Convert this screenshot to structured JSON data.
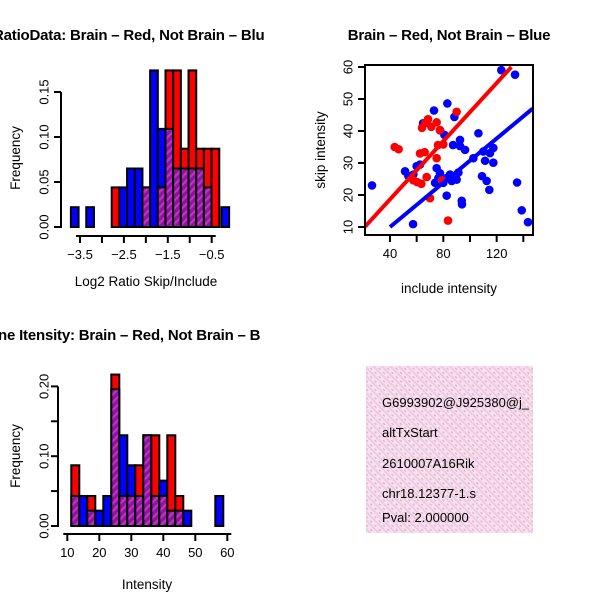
{
  "colors": {
    "red": "#ff0000",
    "blue": "#0000ff",
    "purple_base": "#8a16a0",
    "purple_stripe": "#c72ec7",
    "pink_bg": "#fbdff3",
    "pink_stripe": "#efc9e4",
    "pink_fleck": "#cfc3b4",
    "pval_red": "#a52a2a",
    "axis_black": "#000000"
  },
  "chart_data": [
    {
      "id": "ratio_hist",
      "type": "bar",
      "title": "RatioData: Brain – Red, Not Brain – Blu",
      "xlabel": "Log2 Ratio Skip/Include",
      "ylabel": "Frequency",
      "xlim": [
        -3.8,
        -0.1
      ],
      "ylim": [
        0,
        0.178
      ],
      "grid": false,
      "x_ticks": [
        {
          "v": -3.5,
          "label": "−3.5"
        },
        {
          "v": -3.0,
          "label": ""
        },
        {
          "v": -2.5,
          "label": "−2.5"
        },
        {
          "v": -2.0,
          "label": ""
        },
        {
          "v": -1.5,
          "label": "−1.5"
        },
        {
          "v": -1.0,
          "label": ""
        },
        {
          "v": -0.5,
          "label": "−0.5"
        }
      ],
      "y_ticks": [
        {
          "v": 0.0,
          "label": "0.00"
        },
        {
          "v": 0.05,
          "label": "0.05"
        },
        {
          "v": 0.1,
          "label": "0.10"
        },
        {
          "v": 0.15,
          "label": "0.15"
        }
      ],
      "bar_width_units": 0.175,
      "bars": [
        {
          "c": -3.62,
          "red": 0,
          "blue": 0.022
        },
        {
          "c": -3.27,
          "red": 0,
          "blue": 0.022
        },
        {
          "c": -2.69,
          "red": 0.044,
          "blue": 0
        },
        {
          "c": -2.515,
          "red": 0,
          "blue": 0.044
        },
        {
          "c": -2.34,
          "red": 0,
          "blue": 0.065
        },
        {
          "c": -2.165,
          "red": 0,
          "blue": 0.065
        },
        {
          "c": -1.99,
          "red": 0.044,
          "blue": 0.044
        },
        {
          "c": -1.815,
          "red": 0,
          "blue": 0.174
        },
        {
          "c": -1.64,
          "red": 0.044,
          "blue": 0.109
        },
        {
          "c": -1.465,
          "red": 0.174,
          "blue": 0.109
        },
        {
          "c": -1.29,
          "red": 0.174,
          "blue": 0.065
        },
        {
          "c": -1.115,
          "red": 0.087,
          "blue": 0.065
        },
        {
          "c": -0.94,
          "red": 0.174,
          "blue": 0.065
        },
        {
          "c": -0.765,
          "red": 0.087,
          "blue": 0.065
        },
        {
          "c": -0.59,
          "red": 0.087,
          "blue": 0.044
        },
        {
          "c": -0.415,
          "red": 0.087,
          "blue": 0
        },
        {
          "c": -0.19,
          "red": 0,
          "blue": 0.022
        }
      ]
    },
    {
      "id": "scatter",
      "type": "scatter",
      "title": "Brain – Red, Not Brain – Blue",
      "xlabel": "include intensity",
      "ylabel": "skip intensity",
      "xlim": [
        21,
        147
      ],
      "ylim": [
        8.5,
        61.5
      ],
      "grid": false,
      "x_ticks": [
        {
          "v": 40,
          "label": "40"
        },
        {
          "v": 60,
          "label": ""
        },
        {
          "v": 80,
          "label": "80"
        },
        {
          "v": 100,
          "label": ""
        },
        {
          "v": 120,
          "label": "120"
        },
        {
          "v": 140,
          "label": ""
        }
      ],
      "y_ticks": [
        {
          "v": 10,
          "label": "10"
        },
        {
          "v": 20,
          "label": "20"
        },
        {
          "v": 30,
          "label": "30"
        },
        {
          "v": 40,
          "label": "40"
        },
        {
          "v": 50,
          "label": "50"
        },
        {
          "v": 60,
          "label": "60"
        }
      ],
      "red_points": [
        [
          43.5,
          35
        ],
        [
          46.5,
          34.3
        ],
        [
          64,
          41
        ],
        [
          66.5,
          42.5
        ],
        [
          68.5,
          43.7
        ],
        [
          71,
          41.3
        ],
        [
          75,
          42.7
        ],
        [
          77.5,
          40.3
        ],
        [
          90,
          46
        ],
        [
          62.5,
          33
        ],
        [
          66,
          33.4
        ],
        [
          76,
          35.6
        ],
        [
          80,
          35.8
        ],
        [
          75,
          31.5
        ],
        [
          57.5,
          24.6
        ],
        [
          60.5,
          24
        ],
        [
          63.5,
          23.5
        ],
        [
          67.5,
          25.6
        ],
        [
          70,
          19
        ],
        [
          79,
          24.6
        ],
        [
          83.5,
          12
        ]
      ],
      "blue_points": [
        [
          26.5,
          23
        ],
        [
          123.5,
          59
        ],
        [
          133.8,
          57.6
        ],
        [
          83,
          48.6
        ],
        [
          73,
          46.4
        ],
        [
          88.3,
          44.4
        ],
        [
          64.8,
          42.4
        ],
        [
          77.5,
          40.2
        ],
        [
          80.8,
          38.8
        ],
        [
          92.5,
          37.2
        ],
        [
          87.3,
          35.6
        ],
        [
          92.5,
          35.3
        ],
        [
          96.3,
          34.1
        ],
        [
          106.3,
          39.3
        ],
        [
          102.5,
          31.5
        ],
        [
          110,
          33.6
        ],
        [
          115,
          33.1
        ],
        [
          117.5,
          34.7
        ],
        [
          111.3,
          30.7
        ],
        [
          117.5,
          30.1
        ],
        [
          109,
          25.9
        ],
        [
          112.5,
          24.4
        ],
        [
          114.5,
          21.6
        ],
        [
          135.3,
          23.9
        ],
        [
          91.3,
          27
        ],
        [
          86.3,
          24.4
        ],
        [
          82.5,
          19.8
        ],
        [
          93.8,
          18.2
        ],
        [
          138.8,
          15.2
        ],
        [
          143.5,
          11.5
        ],
        [
          57.5,
          26.4
        ],
        [
          53.8,
          25.9
        ],
        [
          51.3,
          27.4
        ],
        [
          62.5,
          29.5
        ],
        [
          60,
          29
        ],
        [
          75,
          28.4
        ],
        [
          77.5,
          26.8
        ],
        [
          76.3,
          25.3
        ],
        [
          73.8,
          23.8
        ],
        [
          80,
          23.8
        ],
        [
          82.5,
          25.3
        ],
        [
          85,
          26.4
        ],
        [
          90,
          24.8
        ],
        [
          57.3,
          10.9
        ],
        [
          94,
          17.1
        ]
      ],
      "red_line": [
        [
          21,
          10
        ],
        [
          131,
          60
        ]
      ],
      "blue_line": [
        [
          40,
          10
        ],
        [
          147,
          47
        ]
      ]
    },
    {
      "id": "intensity_hist",
      "type": "bar",
      "title": "ne Itensity: Brain – Red, Not Brain – B",
      "xlabel": "Intensity",
      "ylabel": "Frequency",
      "xlim": [
        8,
        62
      ],
      "ylim": [
        0,
        0.225
      ],
      "grid": false,
      "x_ticks": [
        {
          "v": 10,
          "label": "10"
        },
        {
          "v": 20,
          "label": "20"
        },
        {
          "v": 30,
          "label": "30"
        },
        {
          "v": 40,
          "label": "40"
        },
        {
          "v": 50,
          "label": "50"
        },
        {
          "v": 60,
          "label": "60"
        }
      ],
      "y_ticks": [
        {
          "v": 0.0,
          "label": "0.00"
        },
        {
          "v": 0.05,
          "label": ""
        },
        {
          "v": 0.1,
          "label": "0.10"
        },
        {
          "v": 0.15,
          "label": ""
        },
        {
          "v": 0.2,
          "label": "0.20"
        }
      ],
      "bar_width_units": 2.5,
      "bars": [
        {
          "c": 12.5,
          "red": 0.087,
          "blue": 0.043
        },
        {
          "c": 15,
          "red": 0,
          "blue": 0.043
        },
        {
          "c": 17.5,
          "red": 0.043,
          "blue": 0.022
        },
        {
          "c": 20,
          "red": 0,
          "blue": 0.022
        },
        {
          "c": 22.5,
          "red": 0,
          "blue": 0.043
        },
        {
          "c": 25,
          "red": 0.217,
          "blue": 0.196
        },
        {
          "c": 27.5,
          "red": 0.043,
          "blue": 0.13
        },
        {
          "c": 30,
          "red": 0.043,
          "blue": 0.087
        },
        {
          "c": 32.5,
          "red": 0.087,
          "blue": 0.043
        },
        {
          "c": 35,
          "red": 0.13,
          "blue": 0.13
        },
        {
          "c": 37.5,
          "red": 0.13,
          "blue": 0.043
        },
        {
          "c": 40,
          "red": 0.043,
          "blue": 0.065
        },
        {
          "c": 42.5,
          "red": 0.13,
          "blue": 0.022
        },
        {
          "c": 45,
          "red": 0.043,
          "blue": 0.022
        },
        {
          "c": 47.5,
          "red": 0,
          "blue": 0.022
        },
        {
          "c": 57.5,
          "red": 0,
          "blue": 0.043
        }
      ]
    },
    {
      "id": "info_box",
      "type": "table",
      "lines": [
        "G6993902@J925380@j_",
        "altTxStart",
        "2610007A16Rik",
        "chr18.12377-1.s",
        "Pval: 2.000000"
      ],
      "pval_color": "#a52a2a"
    }
  ]
}
